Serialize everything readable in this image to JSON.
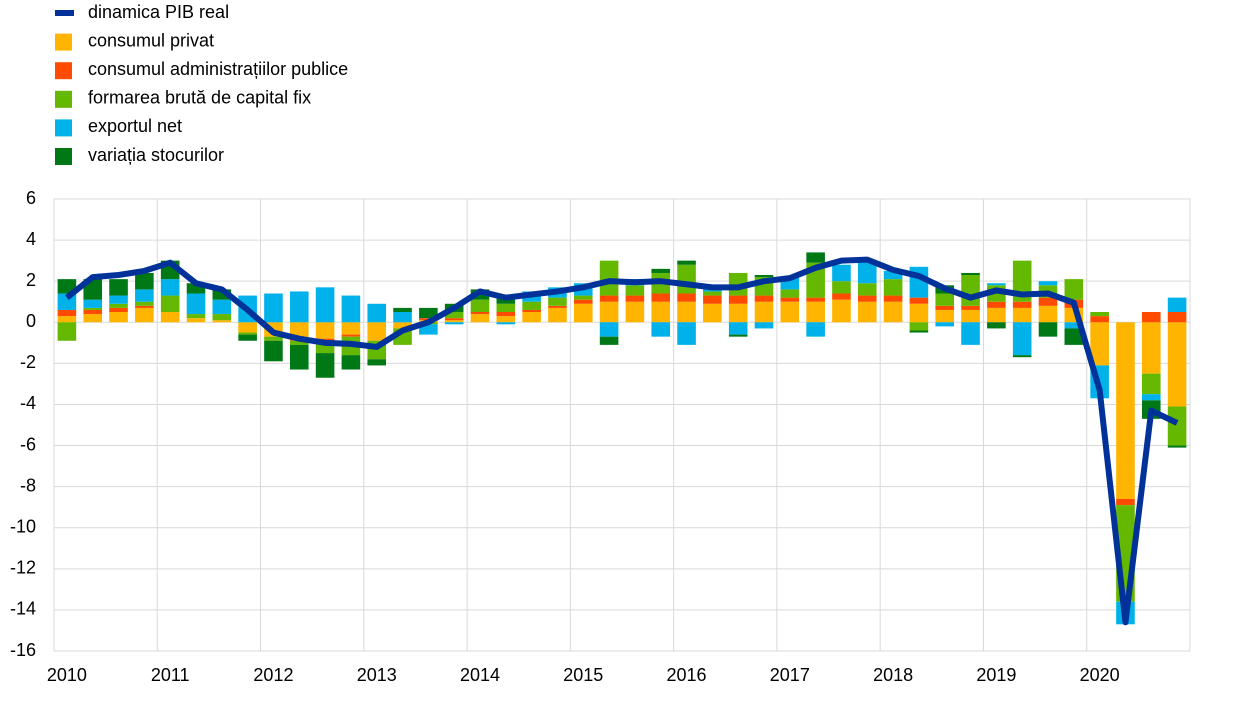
{
  "chart_data": {
    "type": "bar",
    "categories": [
      "2010",
      null,
      null,
      null,
      "2011",
      null,
      null,
      null,
      "2012",
      null,
      null,
      null,
      "2013",
      null,
      null,
      null,
      "2014",
      null,
      null,
      null,
      "2015",
      null,
      null,
      null,
      "2016",
      null,
      null,
      null,
      "2017",
      null,
      null,
      null,
      "2018",
      null,
      null,
      null,
      "2019",
      null,
      null,
      null,
      "2020",
      null,
      null,
      null
    ],
    "series": [
      {
        "name": "dinamica PIB real",
        "type": "line",
        "color": "#003299",
        "values": [
          1.2,
          2.2,
          2.3,
          2.5,
          2.9,
          1.9,
          1.6,
          0.6,
          -0.5,
          -0.8,
          -1.0,
          -1.05,
          -1.2,
          -0.4,
          0.0,
          0.7,
          1.5,
          1.2,
          1.35,
          1.5,
          1.7,
          2.0,
          1.95,
          2.0,
          1.85,
          1.7,
          1.7,
          2.0,
          2.15,
          2.65,
          3.0,
          3.05,
          2.55,
          2.25,
          1.65,
          1.2,
          1.55,
          1.35,
          1.4,
          0.95,
          -3.3,
          -14.6,
          -4.3,
          -4.9
        ]
      },
      {
        "name": "consumul privat",
        "color": "#ffb400",
        "values": [
          0.3,
          0.4,
          0.5,
          0.7,
          0.5,
          0.2,
          0.1,
          -0.5,
          -0.7,
          -0.8,
          -0.8,
          -0.6,
          -0.9,
          -0.3,
          0.1,
          0.1,
          0.4,
          0.3,
          0.5,
          0.7,
          0.9,
          1.0,
          1.0,
          1.0,
          1.0,
          0.9,
          0.9,
          1.0,
          1.0,
          1.0,
          1.1,
          1.0,
          1.0,
          0.9,
          0.6,
          0.6,
          0.7,
          0.7,
          0.8,
          0.7,
          -2.1,
          -8.6,
          -2.5,
          -4.1
        ]
      },
      {
        "name": "consumul administrațiilor publice",
        "color": "#ff4b00",
        "values": [
          0.3,
          0.2,
          0.2,
          0.1,
          0,
          0,
          0,
          0,
          0,
          -0.1,
          -0.1,
          -0.1,
          0,
          0,
          0.1,
          0.1,
          0.1,
          0.2,
          0.1,
          0.1,
          0.2,
          0.3,
          0.3,
          0.4,
          0.4,
          0.4,
          0.4,
          0.3,
          0.2,
          0.2,
          0.3,
          0.3,
          0.3,
          0.3,
          0.2,
          0.2,
          0.3,
          0.3,
          0.4,
          0.4,
          0.3,
          -0.3,
          0.5,
          0.5
        ]
      },
      {
        "name": "formarea brută de capital fix",
        "color": "#65b800",
        "values": [
          -0.9,
          0.1,
          0.2,
          0.2,
          0.8,
          0.2,
          0.3,
          -0.1,
          -0.2,
          -0.2,
          -0.6,
          -0.9,
          -0.9,
          -0.8,
          -0.1,
          0.3,
          0.6,
          0.4,
          0.4,
          0.4,
          0.2,
          1.7,
          0.5,
          1.0,
          1.4,
          0.2,
          1.1,
          0.9,
          0.4,
          1.7,
          0.6,
          0.6,
          0.8,
          -0.4,
          0.6,
          1.5,
          0.8,
          2.0,
          0.6,
          1.0,
          0.2,
          -4.7,
          -1.0,
          -1.9
        ]
      },
      {
        "name": "exportul net",
        "color": "#00b1ea",
        "values": [
          0.8,
          0.4,
          0.4,
          0.6,
          0.8,
          1.0,
          0.7,
          1.3,
          1.4,
          1.5,
          1.7,
          1.3,
          0.9,
          0.5,
          -0.5,
          -0.1,
          0,
          -0.1,
          0.5,
          0.5,
          0.6,
          -0.7,
          0.3,
          -0.7,
          -1.1,
          0.2,
          -0.6,
          -0.3,
          0.6,
          -0.7,
          0.8,
          1.1,
          0.4,
          1.5,
          -0.2,
          -1.1,
          0.1,
          -1.6,
          0.2,
          -0.3,
          -1.6,
          -1.1,
          -0.3,
          0.7
        ]
      },
      {
        "name": "variația stocurilor",
        "color": "#007816",
        "values": [
          0.7,
          1.0,
          0.8,
          0.8,
          0.9,
          0.5,
          0.5,
          -0.3,
          -1.0,
          -1.2,
          -1.2,
          -0.7,
          -0.3,
          0.2,
          0.5,
          0.4,
          0.5,
          0.3,
          0,
          0,
          0,
          -0.4,
          0,
          0.2,
          0.2,
          0,
          -0.1,
          0.1,
          0,
          0.5,
          0,
          0,
          0,
          -0.1,
          0.4,
          0.1,
          -0.3,
          -0.1,
          -0.7,
          -0.8,
          0,
          0,
          -0.9,
          -0.1
        ]
      }
    ],
    "ylim": [
      -16,
      6
    ],
    "yticks": [
      -16,
      -14,
      -12,
      -10,
      -8,
      -6,
      -4,
      -2,
      0,
      2,
      4,
      6
    ],
    "grid": true,
    "legend": "top-left"
  }
}
